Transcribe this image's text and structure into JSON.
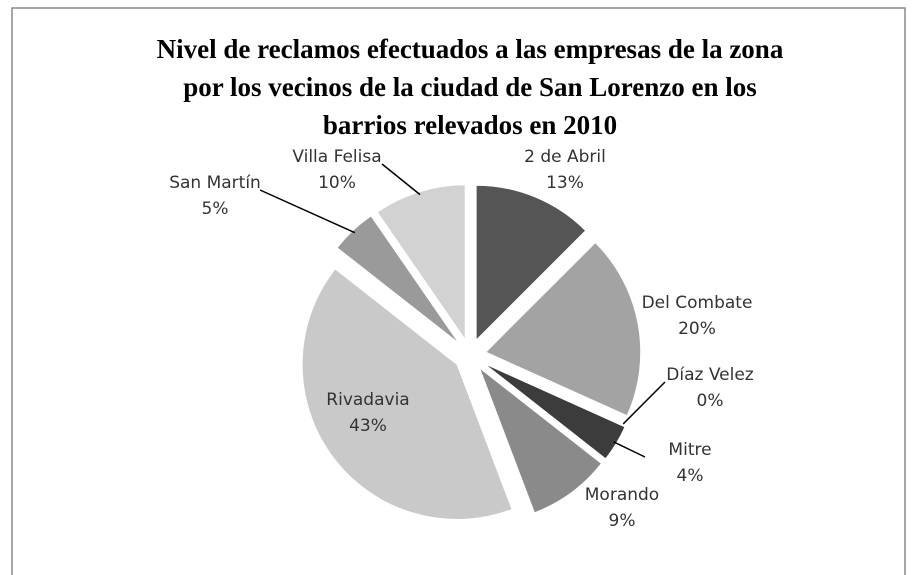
{
  "chart_data": {
    "type": "pie",
    "title": "Nivel de reclamos efectuados a las empresas de la zona\npor los vecinos de la ciudad de San Lorenzo en los\nbarrios relevados en 2010",
    "categories": [
      "2 de Abril",
      "Del Combate",
      "Díaz Velez",
      "Mitre",
      "Morando",
      "Rivadavia",
      "San Martín",
      "Villa Felisa"
    ],
    "values": [
      13,
      20,
      0,
      4,
      9,
      43,
      5,
      10
    ],
    "value_labels": [
      "13%",
      "20%",
      "0%",
      "4%",
      "9%",
      "43%",
      "5%",
      "10%"
    ],
    "colors": [
      "#555555",
      "#a3a3a3",
      "#6a6a6a",
      "#3c3c3c",
      "#8a8a8a",
      "#c9c9c9",
      "#9a9a9a",
      "#d2d2d2"
    ]
  }
}
